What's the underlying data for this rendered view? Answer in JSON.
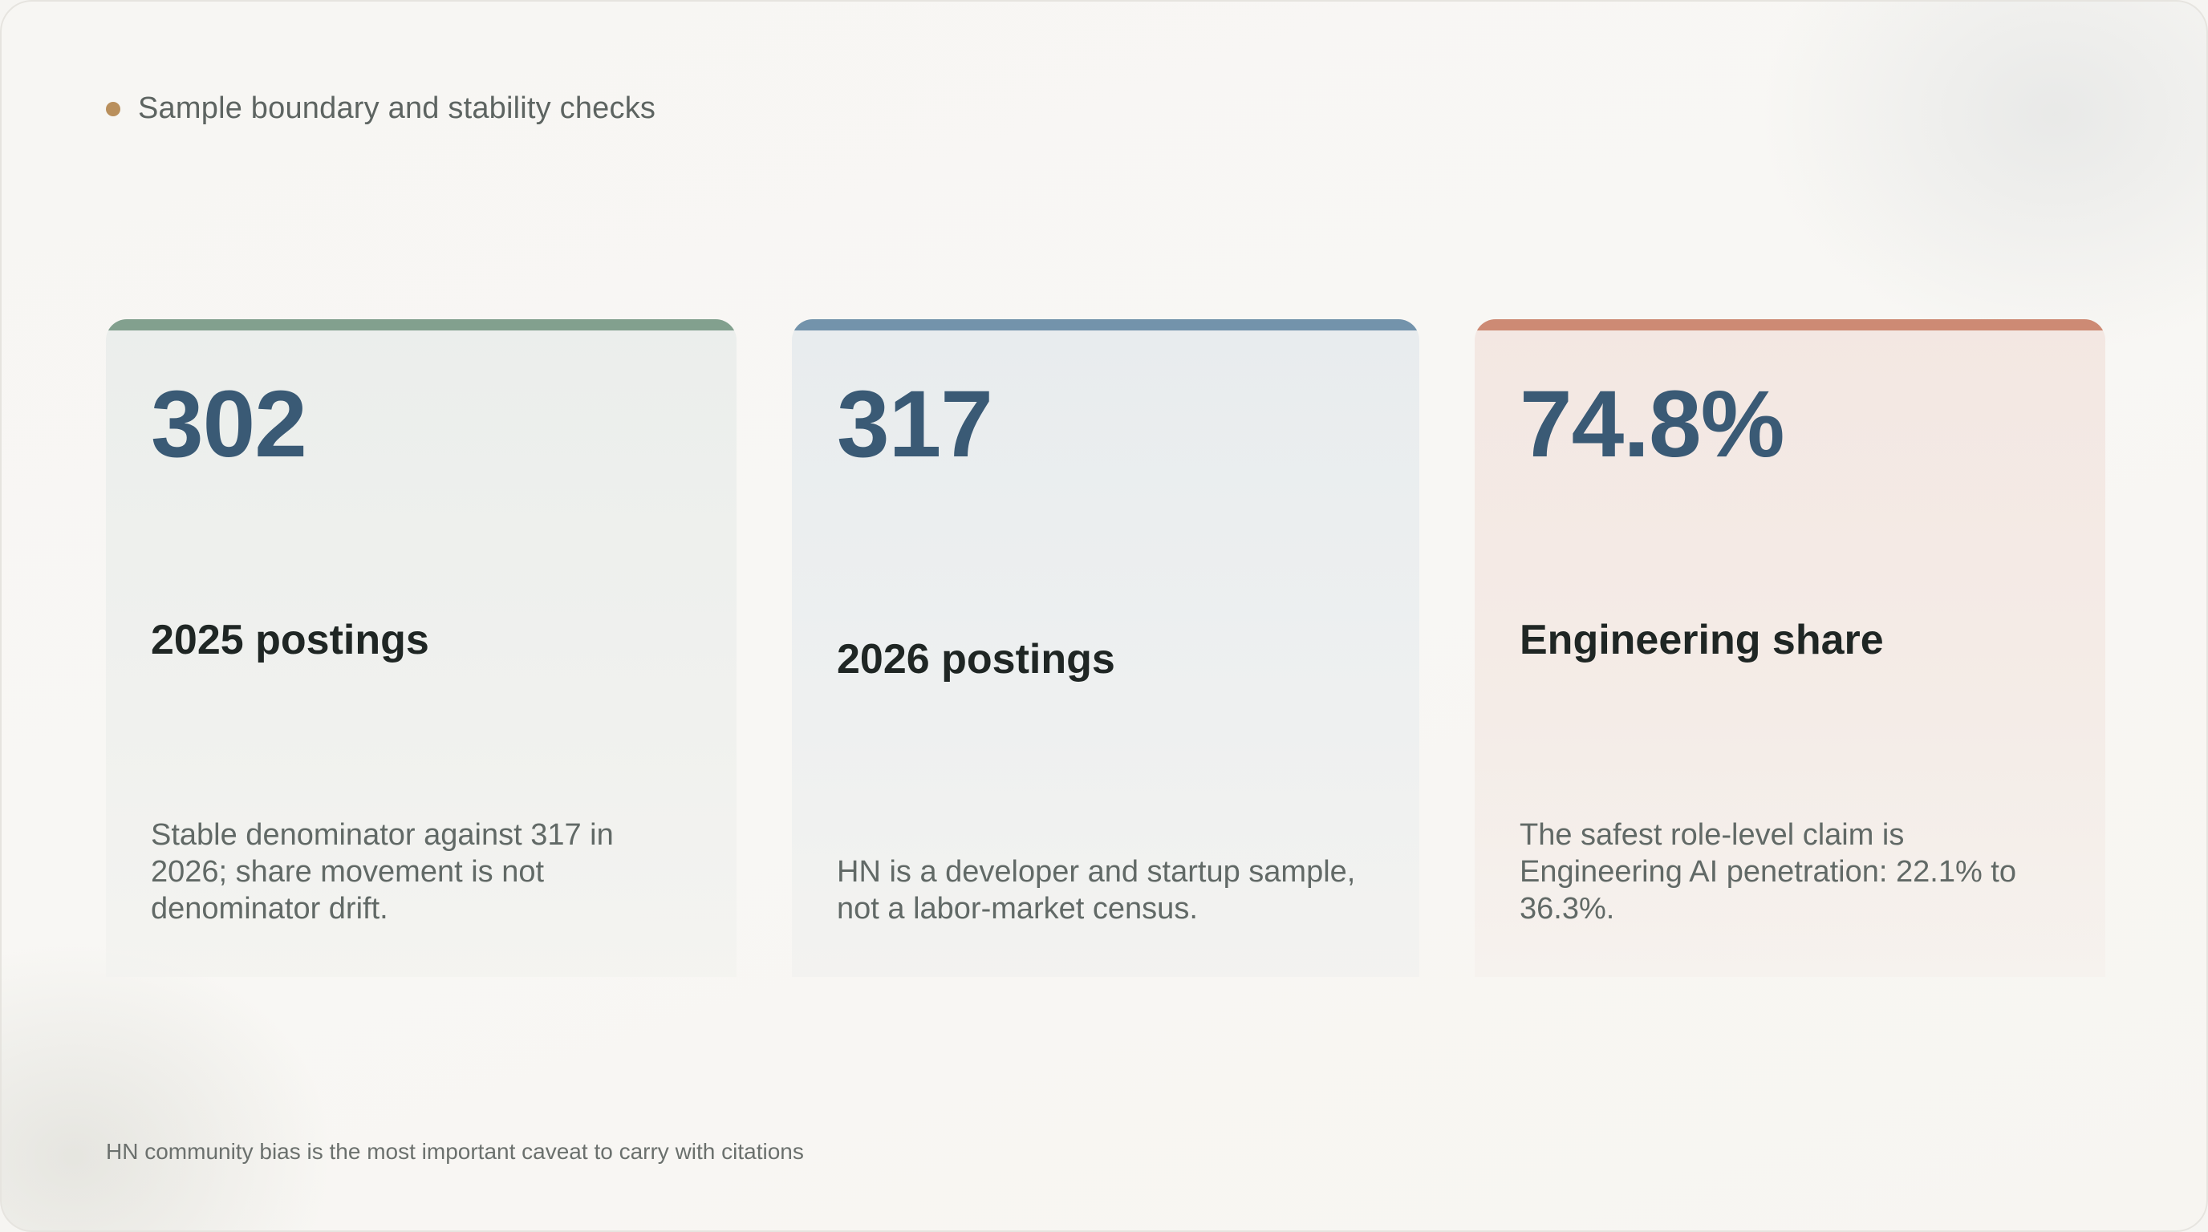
{
  "header": {
    "title": "Sample boundary and stability checks"
  },
  "cards": [
    {
      "value": "302",
      "label": "2025 postings",
      "description": "Stable denominator against 317 in 2026; share movement is not denominator drift.",
      "accent": "#82a08e"
    },
    {
      "value": "317",
      "label": "2026 postings",
      "description": "HN is a developer and startup sample, not a labor-market census.",
      "accent": "#7393ab"
    },
    {
      "value": "74.8%",
      "label": "Engineering share",
      "description": "The safest role-level claim is Engineering AI penetration: 22.1% to 36.3%.",
      "accent": "#cd8a74"
    }
  ],
  "footer": {
    "note": "HN community bias is the most important caveat to carry with citations"
  },
  "colors": {
    "stat_text": "#3a5a75",
    "header_dot": "#b98f5c"
  }
}
